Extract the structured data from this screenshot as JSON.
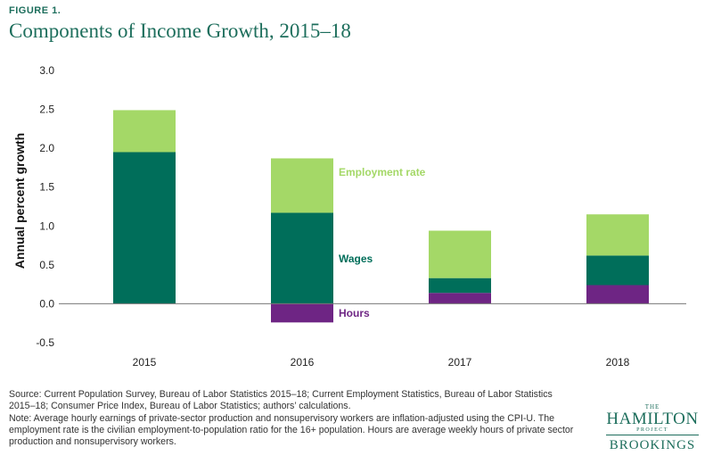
{
  "header": {
    "figure_label": "FIGURE 1.",
    "title": "Components of Income Growth, 2015–18"
  },
  "colors": {
    "employment_rate": "#a4d867",
    "wages": "#006e5a",
    "hours": "#6e2584",
    "title": "#1d6e5c",
    "label_light": "#a4d867",
    "label_dark": "#006e5a",
    "label_hours": "#6e2584"
  },
  "chart_data": {
    "type": "bar",
    "stacked": true,
    "categories": [
      "2015",
      "2016",
      "2017",
      "2018"
    ],
    "series": [
      {
        "name": "Hours",
        "color": "#6e2584",
        "values": [
          0,
          -0.24,
          0.14,
          0.24
        ]
      },
      {
        "name": "Wages",
        "color": "#006e5a",
        "values": [
          1.95,
          1.17,
          0.19,
          0.38
        ]
      },
      {
        "name": "Employment rate",
        "color": "#a4d867",
        "values": [
          0.54,
          0.7,
          0.61,
          0.53
        ]
      }
    ],
    "ylabel": "Annual percent growth",
    "ylim": [
      -0.5,
      3.0
    ],
    "yticks": [
      "-0.5",
      "0.0",
      "0.5",
      "1.0",
      "1.5",
      "2.0",
      "2.5",
      "3.0"
    ],
    "ytick_values": [
      -0.5,
      0,
      0.5,
      1.0,
      1.5,
      2.0,
      2.5,
      3.0
    ],
    "grid": false,
    "legend": "inline labels beside 2016 bar"
  },
  "notes": {
    "source": "Source: Current Population Survey, Bureau of Labor Statistics 2015–18; Current Employment Statistics, Bureau of Labor Statistics 2015–18; Consumer Price Index, Bureau of Labor Statistics; authors’ calculations.",
    "note": "Note: Average hourly earnings of private-sector production and nonsupervisory workers are inflation-adjusted using the CPI-U. The employment rate is the civilian employment-to-population ratio for the 16+ population. Hours are average weekly hours of private sector production and nonsupervisory workers."
  },
  "logo": {
    "the": "THE",
    "hamilton": "HAMILTON",
    "project": "PROJECT",
    "brookings": "BROOKINGS"
  }
}
